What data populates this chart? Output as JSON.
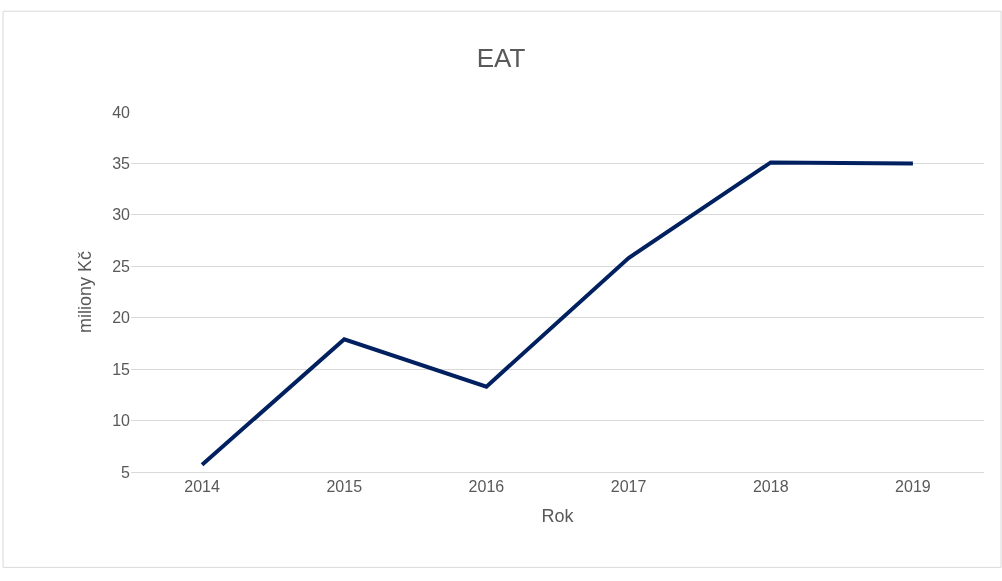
{
  "chart_data": {
    "type": "line",
    "title": "EAT",
    "xlabel": "Rok",
    "ylabel": "miliony Kč",
    "categories": [
      "2014",
      "2015",
      "2016",
      "2017",
      "2018",
      "2019"
    ],
    "series": [
      {
        "color": "#002060",
        "values": [
          5.7,
          17.9,
          13.3,
          25.8,
          35.1,
          35.0
        ]
      }
    ],
    "ylim": [
      5,
      40
    ],
    "yticks": [
      5,
      10,
      15,
      20,
      25,
      30,
      35,
      40
    ],
    "grid": "y",
    "marker": "none",
    "line_style": "solid"
  }
}
